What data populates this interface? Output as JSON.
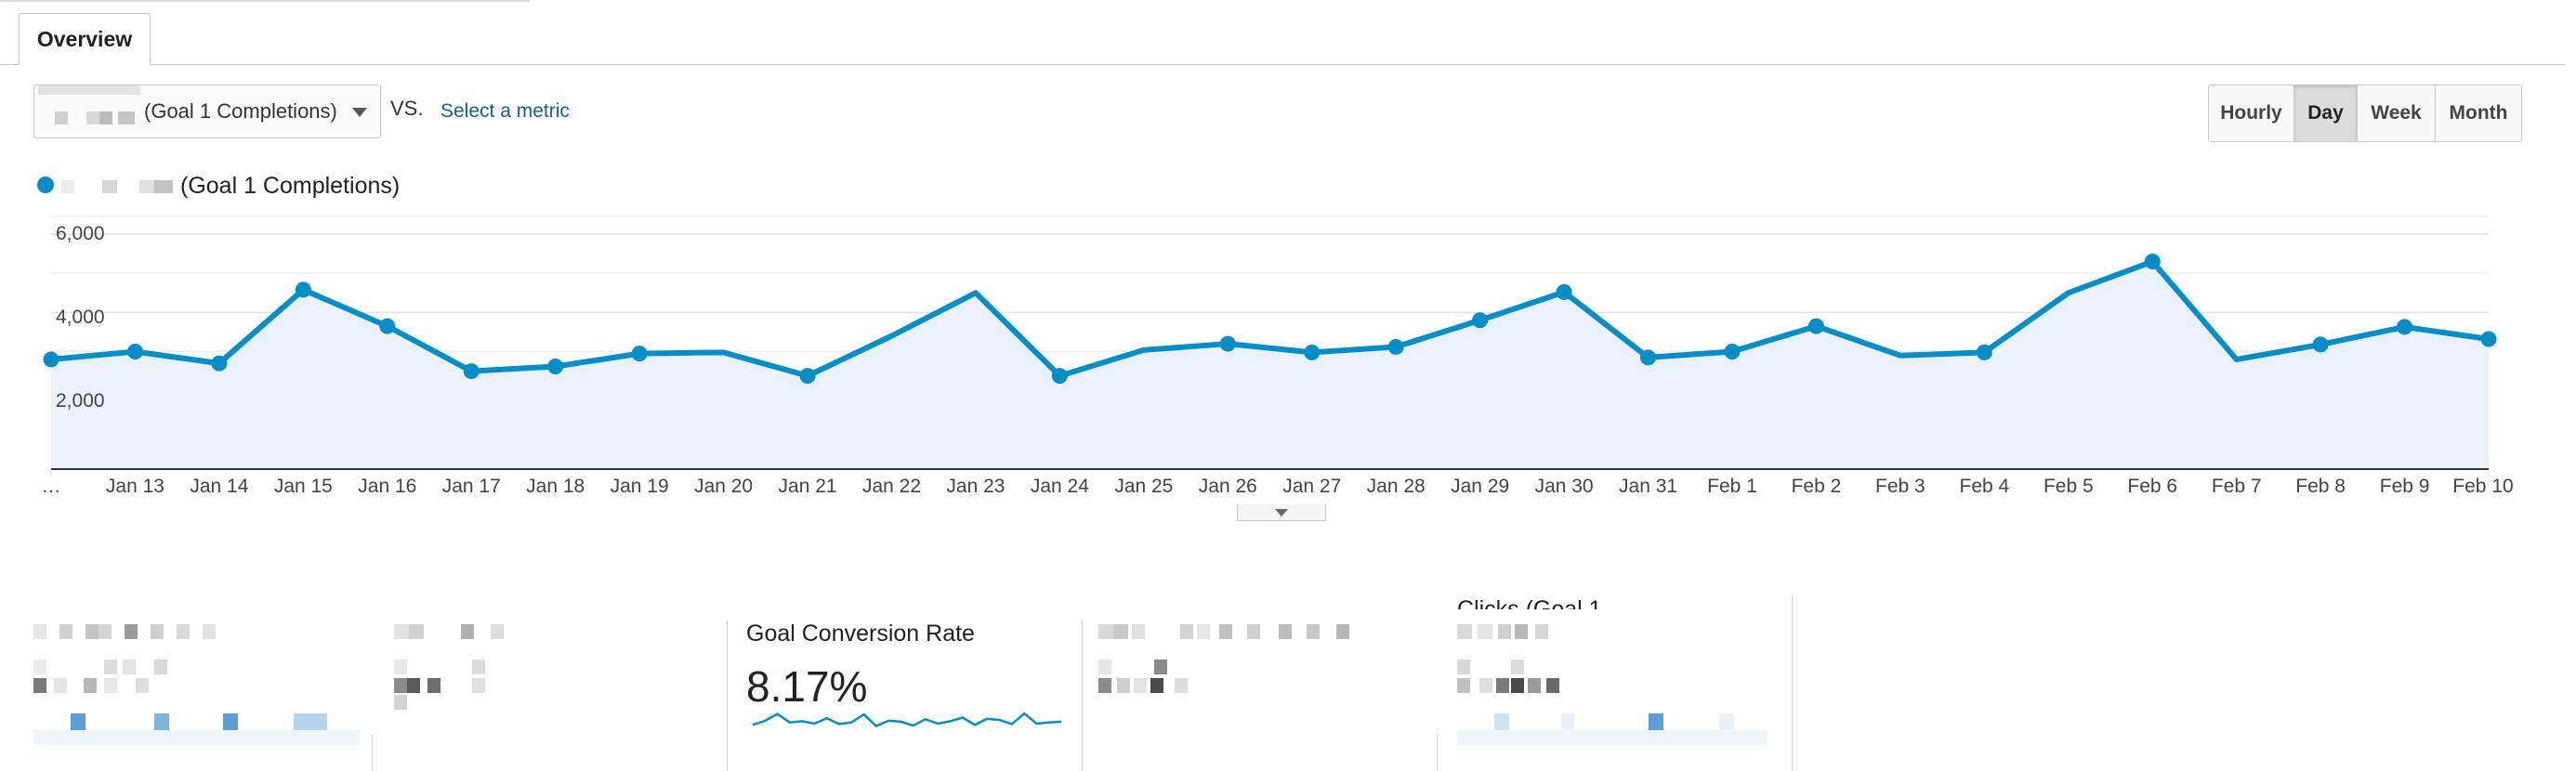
{
  "tabs": {
    "overview": "Overview"
  },
  "metric_selector": {
    "selected": "(Goal 1 Completions)"
  },
  "compare": {
    "vs_label": "VS.",
    "select_metric": "Select a metric"
  },
  "granularity": {
    "options": [
      "Hourly",
      "Day",
      "Week",
      "Month"
    ],
    "selected": "Day"
  },
  "legend": {
    "series_label": "(Goal 1 Completions)",
    "color": "#058dc7"
  },
  "chart_data": {
    "type": "area",
    "y_ticks": [
      "6,000",
      "4,000",
      "2,000"
    ],
    "ylim": [
      0,
      6000
    ],
    "x": [
      "…",
      "Jan 13",
      "Jan 14",
      "Jan 15",
      "Jan 16",
      "Jan 17",
      "Jan 18",
      "Jan 19",
      "Jan 20",
      "Jan 21",
      "Jan 22",
      "Jan 23",
      "Jan 24",
      "Jan 25",
      "Jan 26",
      "Jan 27",
      "Jan 28",
      "Jan 29",
      "Jan 30",
      "Jan 31",
      "Feb 1",
      "Feb 2",
      "Feb 3",
      "Feb 4",
      "Feb 5",
      "Feb 6",
      "Feb 7",
      "Feb 8",
      "Feb 9",
      "Feb 10"
    ],
    "series": [
      {
        "values": [
          2800,
          3000,
          2700,
          4580,
          3650,
          2500,
          2620,
          2950,
          2980,
          2380,
          3400,
          4500,
          2380,
          3040,
          3200,
          2980,
          3120,
          3800,
          4520,
          2850,
          3000,
          3650,
          2900,
          2980,
          4500,
          5300,
          2800,
          3180,
          3630,
          3320
        ],
        "markers": [
          true,
          true,
          true,
          true,
          true,
          true,
          true,
          true,
          false,
          true,
          false,
          false,
          true,
          false,
          true,
          true,
          true,
          true,
          true,
          true,
          true,
          true,
          false,
          true,
          false,
          true,
          false,
          true,
          true,
          true
        ]
      }
    ],
    "grid": true,
    "line_color": "#058dc7",
    "fill_color": "#e9f2fa"
  },
  "scorecards": {
    "goal_conversion_rate": {
      "title": "Goal Conversion Rate",
      "value": "8.17%",
      "sparkline": [
        0.45,
        0.62,
        0.9,
        0.55,
        0.6,
        0.5,
        0.72,
        0.48,
        0.55,
        0.88,
        0.4,
        0.62,
        0.58,
        0.42,
        0.68,
        0.5,
        0.6,
        0.75,
        0.45,
        0.7,
        0.65,
        0.48,
        0.92,
        0.5,
        0.55,
        0.58
      ]
    },
    "clipped_card": {
      "title_fragment": "Clicks (Goal 1"
    }
  },
  "colors": {
    "accent": "#058dc7",
    "link": "#1a5b96",
    "pixelated_blue": "#5b9fd3"
  }
}
